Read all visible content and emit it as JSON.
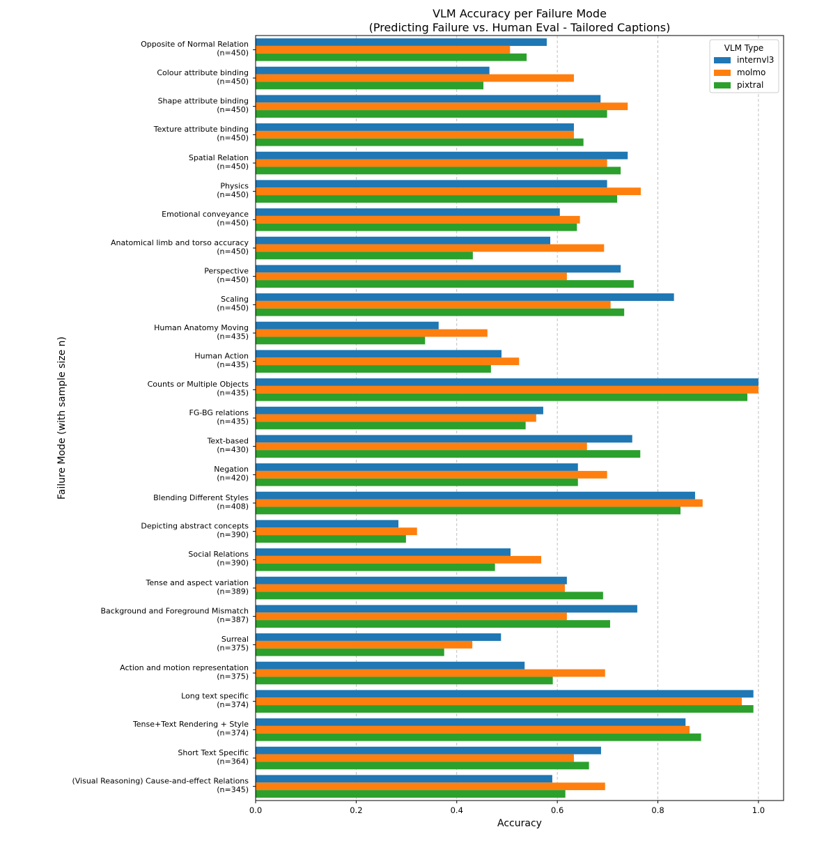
{
  "chart_data": {
    "type": "bar",
    "orientation": "horizontal",
    "title": "VLM Accuracy per Failure Mode\n(Predicting Failure vs. Human Eval - Tailored Captions)",
    "xlabel": "Accuracy",
    "ylabel": "Failure Mode (with sample size n)",
    "xlim": [
      0,
      1.05
    ],
    "xticks": [
      "0.0",
      "0.2",
      "0.4",
      "0.6",
      "0.8",
      "1.0"
    ],
    "grid": "x-dashed",
    "legend": {
      "title": "VLM Type",
      "placement": "top-right"
    },
    "categories": [
      "Opposite of Normal Relation\n(n=450)",
      "Colour attribute binding\n(n=450)",
      "Shape attribute binding\n(n=450)",
      "Texture attribute binding\n(n=450)",
      "Spatial Relation\n(n=450)",
      "Physics\n(n=450)",
      "Emotional conveyance\n(n=450)",
      "Anatomical limb and torso accuracy\n(n=450)",
      "Perspective\n(n=450)",
      "Scaling\n(n=450)",
      "Human Anatomy Moving\n(n=435)",
      "Human Action\n(n=435)",
      "Counts or Multiple Objects\n(n=435)",
      "FG-BG relations\n(n=435)",
      "Text-based\n(n=430)",
      "Negation\n(n=420)",
      "Blending Different Styles\n(n=408)",
      "Depicting abstract concepts\n(n=390)",
      "Social Relations\n(n=390)",
      "Tense and aspect variation\n(n=389)",
      "Background and Foreground Mismatch\n(n=387)",
      "Surreal\n(n=375)",
      "Action and motion representation\n(n=375)",
      "Long text specific\n(n=374)",
      "Tense+Text Rendering + Style\n(n=374)",
      "Short Text Specific\n(n=364)",
      "(Visual Reasoning) Cause-and-effect Relations\n(n=345)"
    ],
    "series": [
      {
        "name": "internvl3",
        "color": "#1f77b4",
        "values": [
          0.579,
          0.465,
          0.686,
          0.633,
          0.74,
          0.699,
          0.605,
          0.586,
          0.726,
          0.832,
          0.364,
          0.489,
          1.0,
          0.572,
          0.749,
          0.641,
          0.874,
          0.284,
          0.507,
          0.619,
          0.759,
          0.488,
          0.535,
          0.99,
          0.855,
          0.687,
          0.59
        ]
      },
      {
        "name": "molmo",
        "color": "#ff7f0e",
        "values": [
          0.506,
          0.633,
          0.74,
          0.633,
          0.699,
          0.766,
          0.645,
          0.693,
          0.619,
          0.706,
          0.461,
          0.524,
          1.0,
          0.558,
          0.659,
          0.699,
          0.889,
          0.321,
          0.568,
          0.615,
          0.619,
          0.431,
          0.695,
          0.967,
          0.863,
          0.633,
          0.695
        ]
      },
      {
        "name": "pixtral",
        "color": "#2ca02c",
        "values": [
          0.539,
          0.453,
          0.699,
          0.652,
          0.726,
          0.719,
          0.639,
          0.432,
          0.752,
          0.733,
          0.337,
          0.468,
          0.978,
          0.537,
          0.765,
          0.641,
          0.845,
          0.299,
          0.476,
          0.691,
          0.705,
          0.375,
          0.591,
          0.99,
          0.886,
          0.663,
          0.616
        ]
      }
    ]
  }
}
